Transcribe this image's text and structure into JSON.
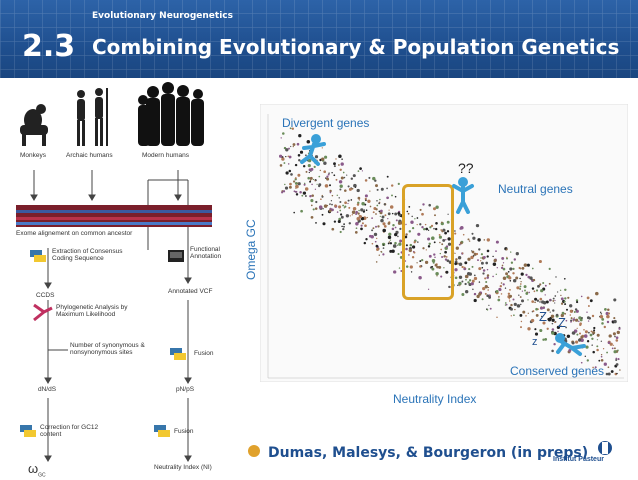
{
  "header": {
    "subtitle": "Evolutionary Neurogenetics",
    "number": "2.3",
    "title": "Combining Evolutionary & Population Genetics"
  },
  "flowchart": {
    "groups": [
      "Monkeys",
      "Archaic humans",
      "Modern humans"
    ],
    "alignment": "Exome alignement on common ancestor",
    "extraction": "Extraction of Consensus Coding Sequence",
    "functional": "Functional Annotation",
    "ccds": "CCDS",
    "annotated_vcf": "Annotated VCF",
    "phylo": "Phylogenetic Analysis by Maximum Likelihood",
    "num_sites": "Number of synonymous & nonsynonymous sites",
    "fusion1": "Fusion",
    "dnds": "dN/dS",
    "pnps": "pN/pS",
    "correction": "Correction for GC12 content",
    "fusion2": "Fusion",
    "omega": "ω",
    "omega_sub": "GC",
    "ni": "Neutrality Index (NI)"
  },
  "plot": {
    "ylabel": "Omega GC",
    "xlabel": "Neutrality Index",
    "divergent": "Divergent genes",
    "neutral": "Neutral genes",
    "conserved": "Conserved genes",
    "question": "??",
    "z1": "Z",
    "z2": "Z",
    "z3": "z"
  },
  "footer": {
    "credit": "Dumas, Malesys, & Bourgeron (in preps)",
    "logo": "Institut Pasteur"
  },
  "colors": {
    "header": "#1f4f8f",
    "accent_text": "#2b74b8",
    "highlight_box": "#d9a227"
  }
}
